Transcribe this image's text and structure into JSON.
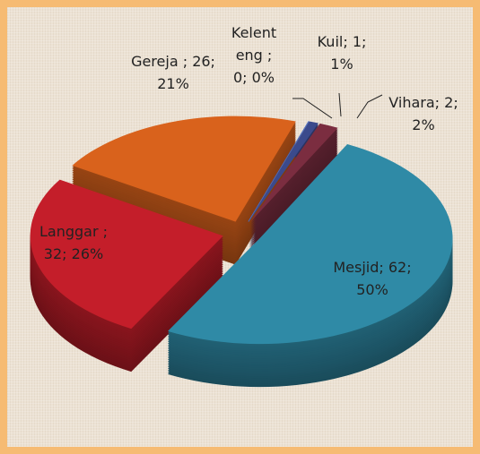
{
  "chart_data": {
    "type": "pie3d",
    "categories": [
      "Mesjid",
      "Langgar",
      "Gereja",
      "Kelenteng",
      "Kuil",
      "Vihara"
    ],
    "values": [
      62,
      32,
      26,
      0,
      1,
      2
    ],
    "value_labels": [
      "; 62; 50%",
      " ; 32; 26%",
      " ; 26; 21%",
      " ; 0; 0%",
      "; 1; 1%",
      "; 2; 2%"
    ],
    "colors": [
      "#2f8aa6",
      "#c41e2a",
      "#d9621c",
      "#4a6cc0",
      "#3b4a8c",
      "#7b2d40"
    ]
  }
}
